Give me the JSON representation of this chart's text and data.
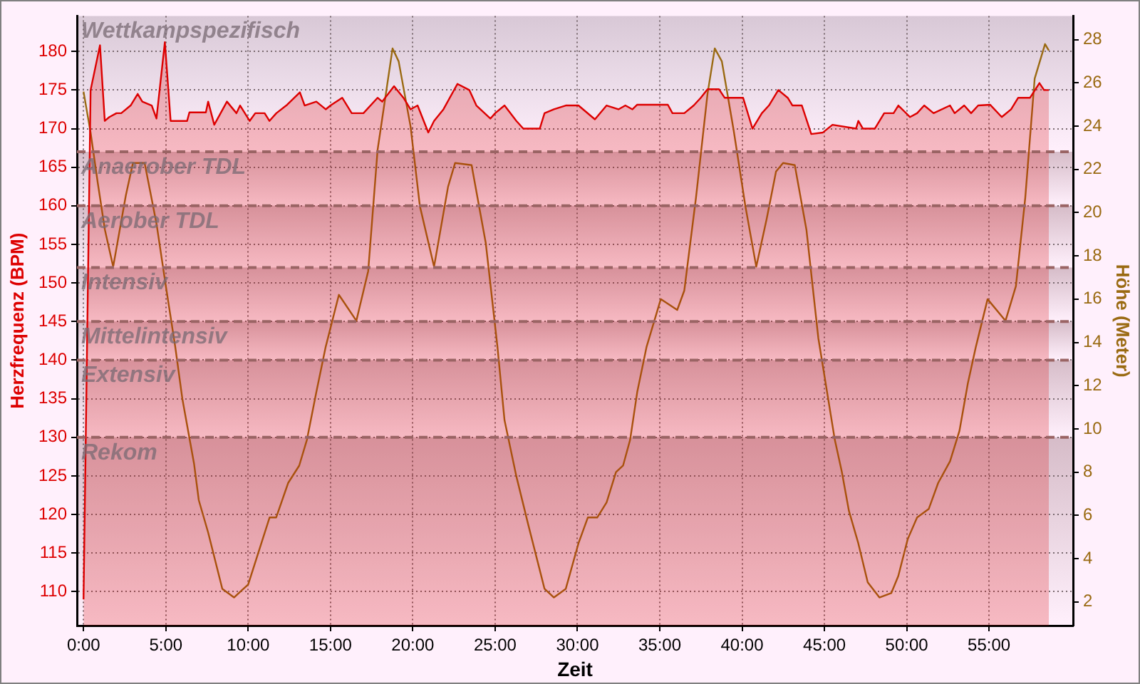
{
  "chart_data": {
    "type": "line",
    "xlabel": "Zeit",
    "ylabel": "Herzfrequenz (BPM)",
    "y2label": "Höhe (Meter)",
    "xlim": [
      -0.4,
      60.1
    ],
    "xticks": [
      {
        "value": 0,
        "label": "0:00"
      },
      {
        "value": 5,
        "label": "5:00"
      },
      {
        "value": 10,
        "label": "10:00"
      },
      {
        "value": 15,
        "label": "15:00"
      },
      {
        "value": 20,
        "label": "20:00"
      },
      {
        "value": 25,
        "label": "25:00"
      },
      {
        "value": 30,
        "label": "30:00"
      },
      {
        "value": 35,
        "label": "35:00"
      },
      {
        "value": 40,
        "label": "40:00"
      },
      {
        "value": 45,
        "label": "45:00"
      },
      {
        "value": 50,
        "label": "50:00"
      },
      {
        "value": 55,
        "label": "55:00"
      }
    ],
    "ylim": [
      105.6,
      184.6
    ],
    "yticks": [
      110,
      115,
      120,
      125,
      130,
      135,
      140,
      145,
      150,
      155,
      160,
      165,
      170,
      175,
      180
    ],
    "y2lim": [
      0.9,
      29.1
    ],
    "y2ticks": [
      2,
      4,
      6,
      8,
      10,
      12,
      14,
      16,
      18,
      20,
      22,
      24,
      26,
      28
    ],
    "grid": true,
    "legend": false,
    "marker": "none",
    "bands": [
      {
        "axis": "y",
        "from": 167,
        "to": 184.6,
        "label": "Wettkampspezifisch",
        "color": "#d8c8d6"
      },
      {
        "axis": "y",
        "from": 160,
        "to": 167,
        "label": "Anaerober TDL",
        "color": "#d6bcc8"
      },
      {
        "axis": "y",
        "from": 152,
        "to": 160,
        "label": "Aerober TDL",
        "color": "#d6bcc8"
      },
      {
        "axis": "y",
        "from": 145,
        "to": 152,
        "label": "Intensiv",
        "color": "#d6bcc8"
      },
      {
        "axis": "y",
        "from": 140,
        "to": 145,
        "label": "Mittelintensiv",
        "color": "#d6bcc8"
      },
      {
        "axis": "y",
        "from": 130,
        "to": 140,
        "label": "Extensiv",
        "color": "#d6bcc8"
      },
      {
        "axis": "y",
        "from": 105.6,
        "to": 130,
        "label": "Rekom",
        "color": "#d6bcc8"
      }
    ],
    "series": [
      {
        "type": "area",
        "color": "#dd0000",
        "x": [
          0,
          0.43,
          1.0,
          1.29,
          1.57,
          2.0,
          2.29,
          2.86,
          3.29,
          3.57,
          4.14,
          4.43,
          4.94,
          5.29,
          6.29,
          6.43,
          7.43,
          7.57,
          7.94,
          8.71,
          9.29,
          9.51,
          10.09,
          10.43,
          11.0,
          11.29,
          11.71,
          12.37,
          13.14,
          13.43,
          14.14,
          14.71,
          15.0,
          15.71,
          16.29,
          17.0,
          17.86,
          18.14,
          18.86,
          19.43,
          19.86,
          20.29,
          20.94,
          21.29,
          21.86,
          22.71,
          23.43,
          23.86,
          24.71,
          25.0,
          25.57,
          26.29,
          26.71,
          27.71,
          28.0,
          28.57,
          29.29,
          30.06,
          31.06,
          31.77,
          32.49,
          32.91,
          33.34,
          33.63,
          35.49,
          35.77,
          36.49,
          37.06,
          37.49,
          37.9,
          38.6,
          38.94,
          40.06,
          40.63,
          41.2,
          41.63,
          42.2,
          42.77,
          43.06,
          43.63,
          44.2,
          44.91,
          45.49,
          46.92,
          47.06,
          47.34,
          48.06,
          48.63,
          49.2,
          49.49,
          50.2,
          50.63,
          51.06,
          51.63,
          52.63,
          52.91,
          53.49,
          53.91,
          54.34,
          55.06,
          55.77,
          56.34,
          56.77,
          57.49,
          58.06,
          58.34,
          58.63
        ],
        "values": [
          109,
          175,
          180.8,
          171,
          171.5,
          172,
          172,
          173,
          174.5,
          173.5,
          173,
          171.3,
          181.2,
          171,
          171,
          172.1,
          172.1,
          173.5,
          170.5,
          173.5,
          172,
          173,
          171,
          172,
          172,
          171,
          172,
          173.1,
          174.7,
          173,
          173.5,
          172.5,
          173,
          174,
          172,
          172,
          174,
          173.5,
          175.5,
          174,
          172.5,
          173,
          169.5,
          171,
          172.5,
          175.8,
          175,
          173,
          171.3,
          172,
          173,
          171,
          170,
          170,
          172,
          172.5,
          173,
          173,
          171.2,
          173,
          172.5,
          173,
          172.5,
          173.1,
          173.1,
          172,
          172,
          173,
          174,
          175.1,
          175.1,
          174,
          174,
          170,
          172,
          173,
          175,
          174,
          173,
          173,
          169.3,
          169.5,
          170.5,
          170,
          171,
          170,
          170,
          172,
          172,
          173,
          171.5,
          172,
          173,
          172,
          173,
          172,
          173,
          172,
          173,
          173.1,
          171.5,
          172.5,
          174,
          174,
          175.9,
          175,
          175
        ]
      },
      {
        "type": "line",
        "axis": "y2",
        "color": "#9a6a12",
        "x": [
          0,
          0.43,
          0.86,
          1.3,
          1.8,
          2.57,
          3.0,
          3.71,
          4.43,
          5.0,
          5.57,
          6.0,
          6.71,
          7.0,
          7.57,
          8.43,
          9.14,
          9.57,
          10.0,
          11.3,
          11.7,
          12.43,
          13.1,
          13.57,
          14.14,
          14.71,
          15.51,
          16.57,
          17.29,
          17.86,
          18.77,
          19.14,
          19.86,
          20.43,
          21.29,
          22.14,
          22.57,
          23.57,
          24.43,
          25.14,
          25.57,
          26.29,
          27.0,
          28.0,
          28.57,
          29.29,
          30.06,
          30.63,
          31.2,
          31.77,
          32.34,
          32.77,
          33.2,
          33.63,
          34.2,
          35.06,
          36.06,
          36.49,
          37.2,
          37.9,
          38.34,
          38.77,
          39.49,
          40.2,
          40.86,
          41.49,
          42.06,
          42.49,
          43.2,
          43.91,
          44.63,
          45.63,
          46.06,
          46.49,
          47.06,
          47.63,
          48.34,
          49.06,
          49.49,
          50.06,
          50.63,
          51.34,
          51.91,
          52.63,
          53.2,
          53.71,
          54.2,
          54.91,
          56.0,
          56.63,
          57.2,
          57.77,
          58.4,
          58.63
        ],
        "values": [
          25.6,
          23.7,
          21.4,
          19.2,
          17.5,
          20.8,
          22.3,
          22.3,
          19.5,
          16.6,
          13.8,
          11.4,
          8.4,
          6.7,
          5.2,
          2.6,
          2.2,
          2.5,
          2.8,
          5.9,
          5.9,
          7.5,
          8.3,
          9.5,
          11.7,
          13.8,
          16.2,
          15.0,
          17.3,
          22.9,
          27.6,
          27.0,
          24.0,
          20.3,
          17.5,
          21.2,
          22.3,
          22.2,
          18.6,
          13.8,
          10.4,
          7.8,
          5.6,
          2.6,
          2.2,
          2.6,
          4.7,
          5.9,
          5.9,
          6.6,
          8.0,
          8.3,
          9.5,
          11.7,
          13.8,
          16.0,
          15.5,
          16.4,
          20.7,
          25.5,
          27.6,
          27.0,
          23.8,
          20.3,
          17.5,
          19.7,
          21.9,
          22.3,
          22.2,
          19.2,
          14.2,
          9.5,
          8.0,
          6.2,
          4.7,
          2.9,
          2.2,
          2.4,
          3.2,
          4.9,
          5.9,
          6.3,
          7.5,
          8.5,
          9.9,
          12.1,
          13.8,
          16.0,
          15.0,
          16.6,
          20.7,
          26.2,
          27.8,
          27.5
        ]
      }
    ]
  }
}
